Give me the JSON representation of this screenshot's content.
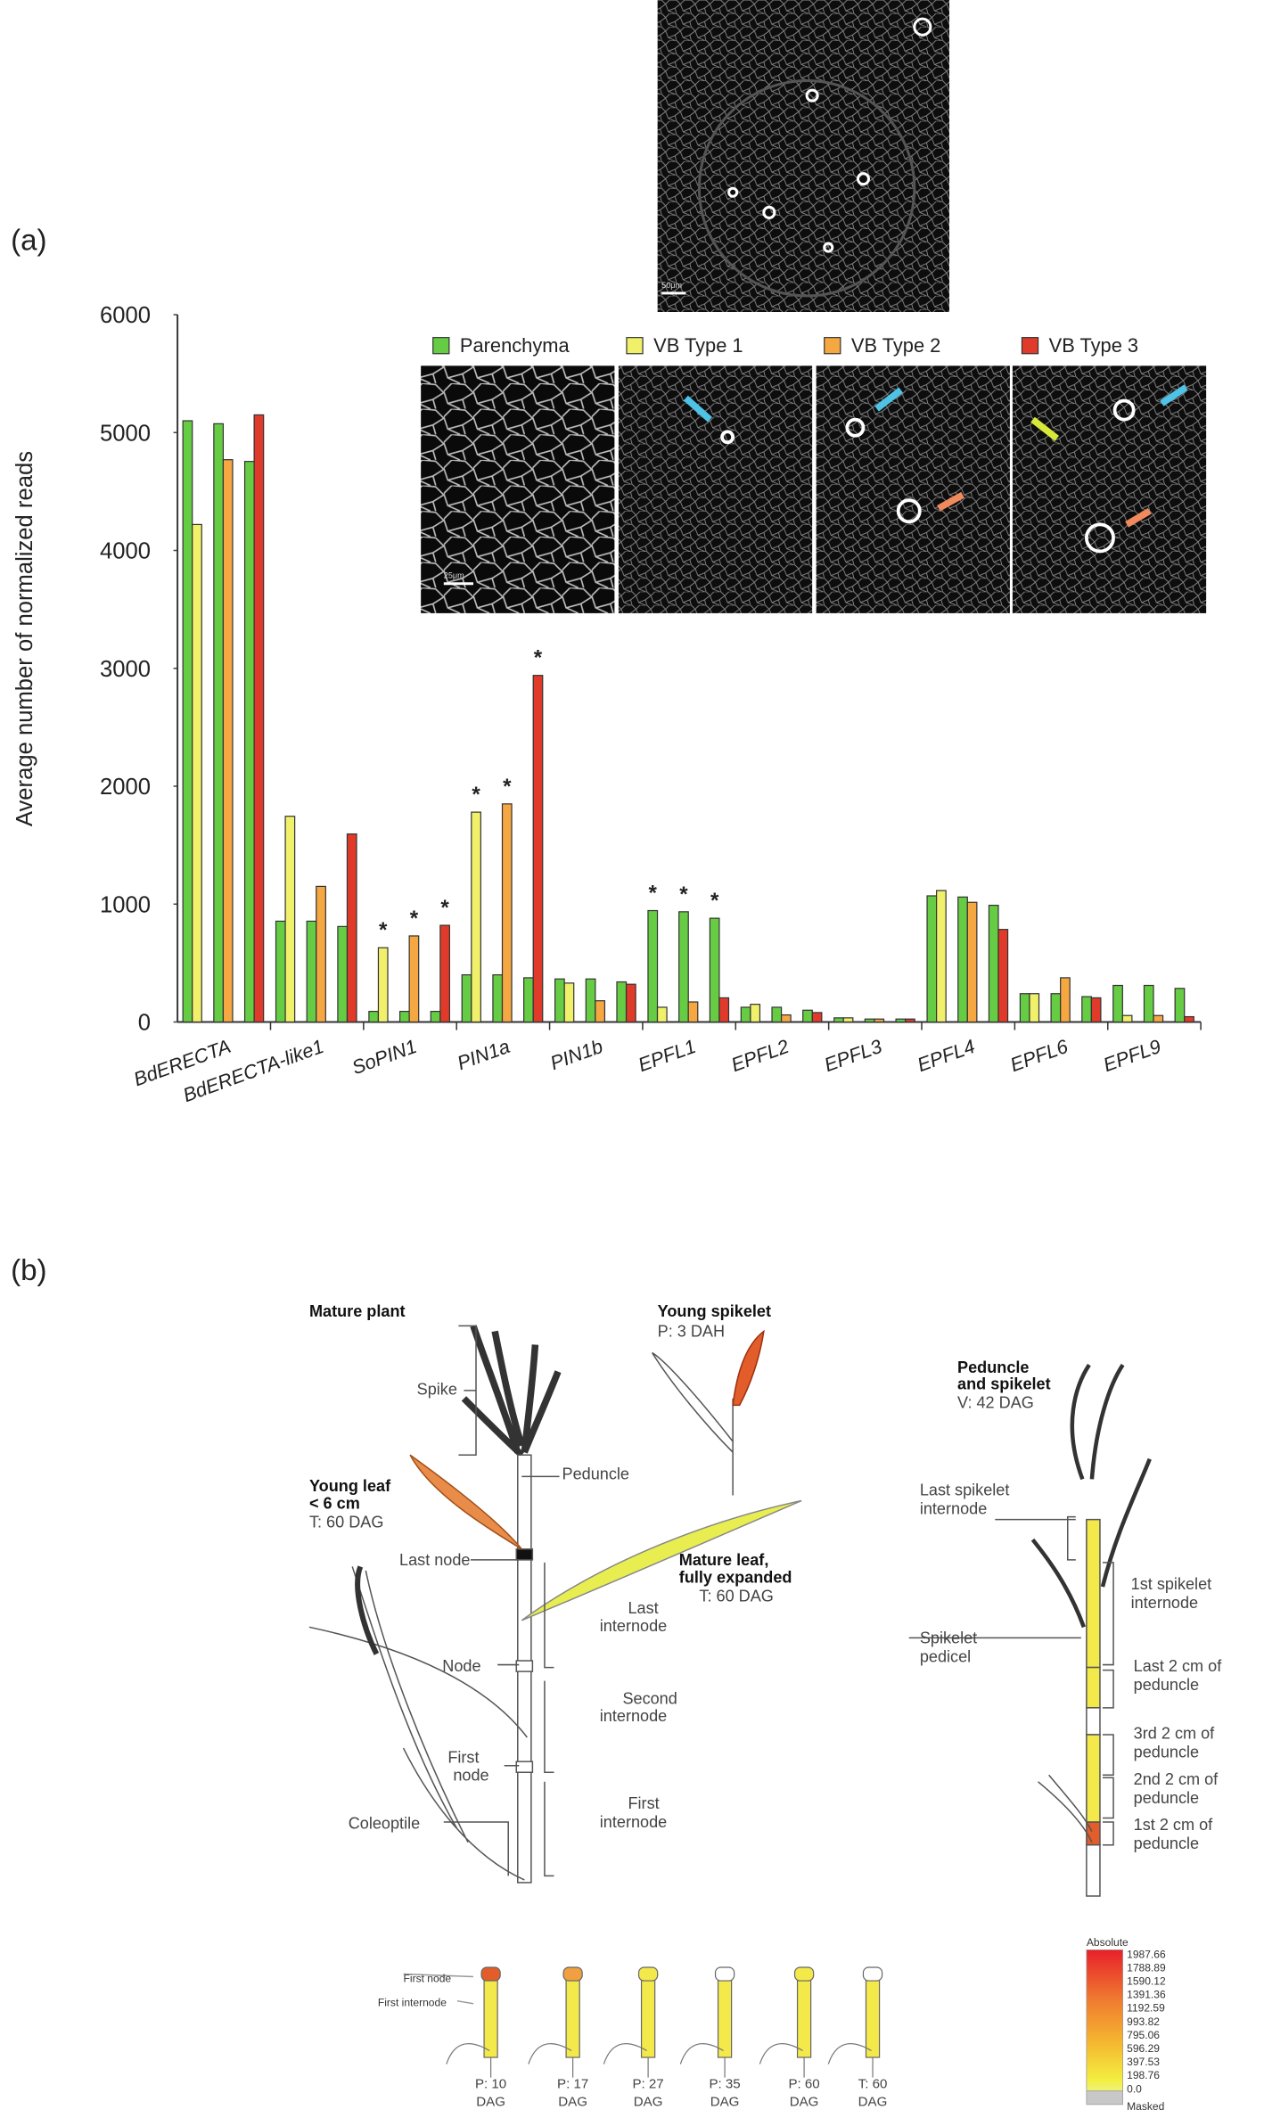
{
  "panel_labels": [
    "(a)",
    "(b)"
  ],
  "chart_data": {
    "type": "bar",
    "y_label": "Average number of normalized reads",
    "categories": [
      "BdERECTA",
      "BdERECTA-like1",
      "SoPIN1",
      "PIN1a",
      "PIN1b",
      "EPFL1",
      "EPFL2",
      "EPFL3",
      "EPFL4",
      "EPFL6",
      "EPFL9"
    ],
    "ylim": [
      0,
      6000
    ],
    "yticks": [
      0,
      1000,
      2000,
      3000,
      4000,
      5000,
      6000
    ],
    "grid": false,
    "significance_mark": "*",
    "series": [
      {
        "name": "Parenchyma",
        "color": "#66cc44",
        "values": [
          [
            5100,
            5075,
            4755
          ],
          [
            855,
            855,
            810
          ],
          [
            90,
            90,
            90
          ],
          [
            400,
            400,
            375
          ],
          [
            365,
            365,
            340
          ],
          [
            945,
            935,
            880
          ],
          [
            125,
            125,
            100
          ],
          [
            35,
            25,
            25
          ],
          [
            1070,
            1060,
            990
          ],
          [
            240,
            240,
            215
          ],
          [
            310,
            310,
            285
          ]
        ],
        "significant": [
          [
            false,
            false,
            false
          ],
          [
            false,
            false,
            false
          ],
          [
            false,
            false,
            false
          ],
          [
            false,
            false,
            false
          ],
          [
            false,
            false,
            false
          ],
          [
            true,
            true,
            true
          ],
          [
            false,
            false,
            false
          ],
          [
            false,
            false,
            false
          ],
          [
            false,
            false,
            false
          ],
          [
            false,
            false,
            false
          ],
          [
            false,
            false,
            false
          ]
        ]
      },
      {
        "name": "VB Type 1",
        "color": "#f0f06a",
        "values": [
          4220,
          1745,
          630,
          1780,
          330,
          125,
          150,
          35,
          1115,
          240,
          55
        ],
        "significant": [
          false,
          false,
          true,
          true,
          false,
          false,
          false,
          false,
          false,
          false,
          false
        ]
      },
      {
        "name": "VB Type 2",
        "color": "#f5a742",
        "values": [
          4770,
          1150,
          730,
          1850,
          180,
          170,
          60,
          25,
          1015,
          375,
          55
        ],
        "significant": [
          false,
          false,
          true,
          true,
          false,
          false,
          false,
          false,
          false,
          false,
          false
        ]
      },
      {
        "name": "VB Type 3",
        "color": "#e03a2a",
        "values": [
          5150,
          1595,
          820,
          2940,
          320,
          205,
          80,
          25,
          785,
          205,
          45
        ],
        "significant": [
          false,
          false,
          true,
          true,
          false,
          false,
          false,
          false,
          false,
          false,
          false
        ]
      }
    ]
  },
  "micrographs": {
    "overview_scale": "50μm",
    "panel_scale": "25μm"
  },
  "diagram": {
    "mature_plant": {
      "title": "Mature plant",
      "spike": "Spike",
      "peduncle": "Peduncle",
      "young_leaf": [
        "Young leaf",
        "< 6 cm"
      ],
      "young_leaf_stage": "T: 60 DAG",
      "last_node": "Last node",
      "mature_leaf": [
        "Mature leaf,",
        "fully expanded"
      ],
      "mature_leaf_stage": "T: 60 DAG",
      "last_internode": [
        "Last",
        "internode"
      ],
      "node": "Node",
      "second_internode": [
        "Second",
        "internode"
      ],
      "first_node": [
        "First",
        "node"
      ],
      "first_internode": [
        "First",
        "internode"
      ],
      "coleoptile": "Coleoptile"
    },
    "young_spikelet": {
      "title": "Young spikelet",
      "stage": "P: 3 DAH"
    },
    "peduncle_spikelet": {
      "title": [
        "Peduncle",
        "and spikelet"
      ],
      "stage": "V: 42 DAG",
      "labels": [
        [
          "Last spikelet",
          "internode"
        ],
        [
          "1st spikelet",
          "internode"
        ],
        [
          "Spikelet",
          "pedicel"
        ],
        [
          "Last 2 cm of",
          "peduncle"
        ],
        [
          "3rd 2 cm of",
          "peduncle"
        ],
        [
          "2nd 2 cm of",
          "peduncle"
        ],
        [
          "1st 2 cm of",
          "peduncle"
        ]
      ]
    },
    "time_series": {
      "first_node": "First node",
      "first_internode": "First internode",
      "stages": [
        [
          "P: 10",
          "DAG"
        ],
        [
          "P: 17",
          "DAG"
        ],
        [
          "P: 27",
          "DAG"
        ],
        [
          "P: 35",
          "DAG"
        ],
        [
          "P: 60",
          "DAG"
        ],
        [
          "T: 60",
          "DAG"
        ]
      ]
    },
    "color_scale": {
      "title": "Absolute",
      "labels": [
        "1987.66",
        "1788.89",
        "1590.12",
        "1391.36",
        "1192.59",
        "993.82",
        "795.06",
        "596.29",
        "397.53",
        "198.76",
        "0.0"
      ],
      "masked": "Masked"
    }
  }
}
